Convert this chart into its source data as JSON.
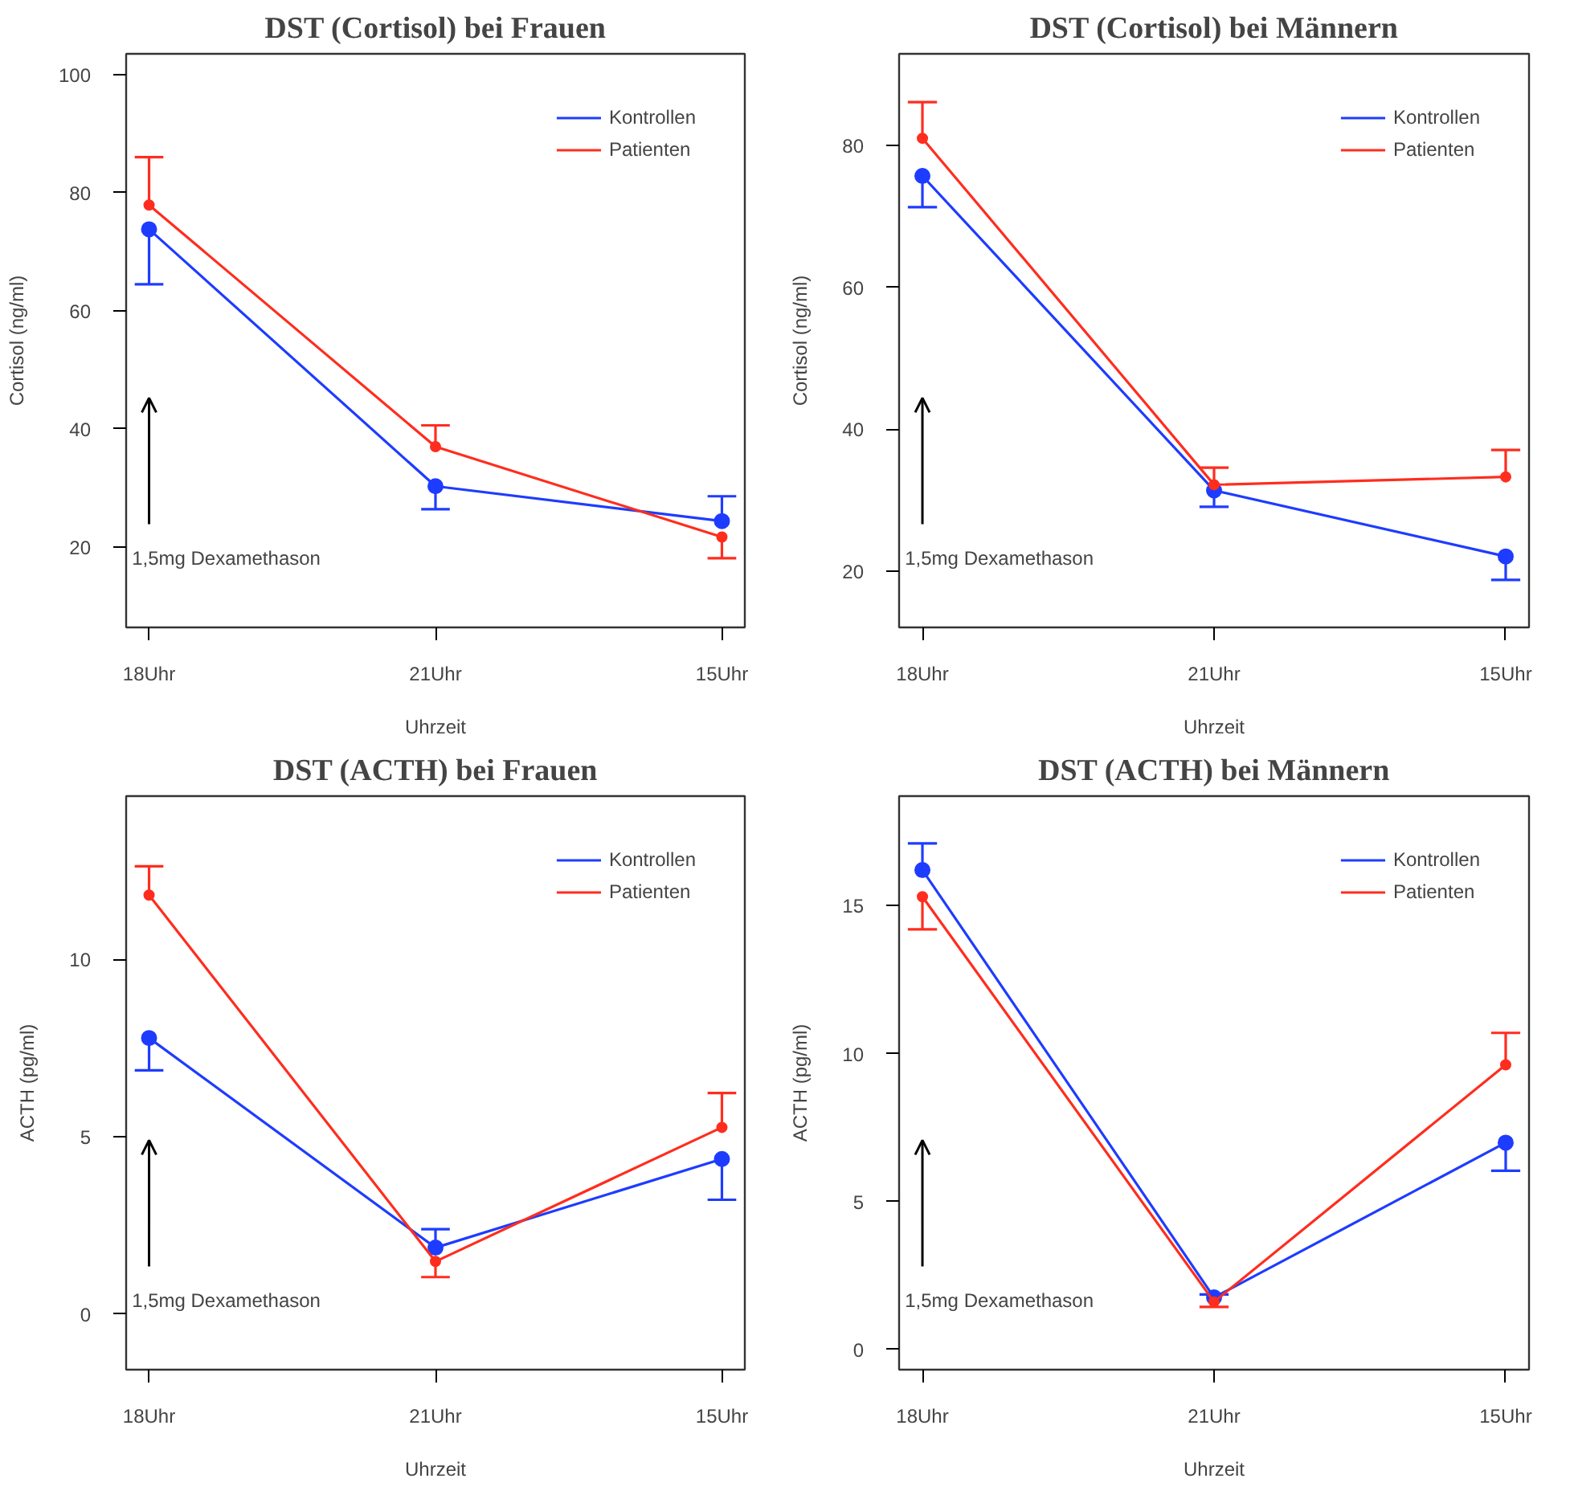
{
  "chart_data": [
    {
      "type": "line",
      "title": "DST (Cortisol) bei Frauen",
      "xlabel": "Uhrzeit",
      "ylabel": "Cortisol (ng/ml)",
      "categories": [
        "18Uhr",
        "21Uhr",
        "15Uhr"
      ],
      "ylim": [
        6.4,
        103.5
      ],
      "yticks": [
        20,
        40,
        60,
        80,
        100
      ],
      "marker": "circle",
      "legend": "top right",
      "grid": false,
      "series": [
        {
          "name": "Kontrollen",
          "color": "#1e3cff",
          "values": [
            73.8,
            30.3,
            24.4
          ],
          "errors": [
            [
              64.5,
              73.8
            ],
            [
              26.4,
              30.3
            ],
            [
              24.4,
              28.6
            ]
          ]
        },
        {
          "name": "Patienten",
          "color": "#ff2d1e",
          "values": [
            77.9,
            37.0,
            21.7
          ],
          "errors": [
            [
              77.9,
              86.0
            ],
            [
              37.0,
              40.6
            ],
            [
              18.1,
              21.7
            ]
          ]
        }
      ],
      "annotations": [
        "1,5mg Dexamethason"
      ]
    },
    {
      "type": "line",
      "title": "DST (Cortisol) bei Männern",
      "xlabel": "Uhrzeit",
      "ylabel": "Cortisol (ng/ml)",
      "categories": [
        "18Uhr",
        "21Uhr",
        "15Uhr"
      ],
      "ylim": [
        12.1,
        92.9
      ],
      "yticks": [
        20,
        40,
        60,
        80
      ],
      "marker": "circle",
      "legend": "top right",
      "grid": false,
      "series": [
        {
          "name": "Kontrollen",
          "color": "#1e3cff",
          "values": [
            75.7,
            31.4,
            22.1
          ],
          "errors": [
            [
              71.3,
              75.7
            ],
            [
              29.1,
              31.4
            ],
            [
              18.8,
              22.1
            ]
          ]
        },
        {
          "name": "Patienten",
          "color": "#ff2d1e",
          "values": [
            81.0,
            32.2,
            33.3
          ],
          "errors": [
            [
              81.0,
              86.1
            ],
            [
              32.2,
              34.6
            ],
            [
              33.3,
              37.1
            ]
          ]
        }
      ],
      "annotations": [
        "1,5mg Dexamethason"
      ]
    },
    {
      "type": "line",
      "title": "DST (ACTH) bei Frauen",
      "xlabel": "Uhrzeit",
      "ylabel": "ACTH (pg/ml)",
      "categories": [
        "18Uhr",
        "21Uhr",
        "15Uhr"
      ],
      "ylim": [
        -1.57,
        14.6
      ],
      "yticks": [
        0,
        5,
        10
      ],
      "marker": "circle",
      "legend": "top right",
      "grid": false,
      "series": [
        {
          "name": "Kontrollen",
          "color": "#1e3cff",
          "values": [
            7.78,
            1.87,
            4.37
          ],
          "errors": [
            [
              6.87,
              7.78
            ],
            [
              1.87,
              2.39
            ],
            [
              3.22,
              4.37
            ]
          ]
        },
        {
          "name": "Patienten",
          "color": "#ff2d1e",
          "values": [
            11.81,
            1.48,
            5.26
          ],
          "errors": [
            [
              11.81,
              12.62
            ],
            [
              1.04,
              1.48
            ],
            [
              5.26,
              6.23
            ]
          ]
        }
      ],
      "annotations": [
        "1,5mg Dexamethason"
      ]
    },
    {
      "type": "line",
      "title": "DST (ACTH) bei Männern",
      "xlabel": "Uhrzeit",
      "ylabel": "ACTH (pg/ml)",
      "categories": [
        "18Uhr",
        "21Uhr",
        "15Uhr"
      ],
      "ylim": [
        -0.68,
        18.7
      ],
      "yticks": [
        0,
        5,
        10,
        15
      ],
      "marker": "circle",
      "legend": "top right",
      "grid": false,
      "series": [
        {
          "name": "Kontrollen",
          "color": "#1e3cff",
          "values": [
            16.2,
            1.76,
            6.99
          ],
          "errors": [
            [
              16.2,
              17.1
            ],
            [
              1.76,
              1.86
            ],
            [
              6.04,
              6.99
            ]
          ]
        },
        {
          "name": "Patienten",
          "color": "#ff2d1e",
          "values": [
            15.3,
            1.61,
            9.62
          ],
          "errors": [
            [
              14.2,
              15.3
            ],
            [
              1.44,
              1.61
            ],
            [
              9.62,
              10.7
            ]
          ]
        }
      ],
      "annotations": [
        "1,5mg Dexamethason"
      ]
    }
  ]
}
